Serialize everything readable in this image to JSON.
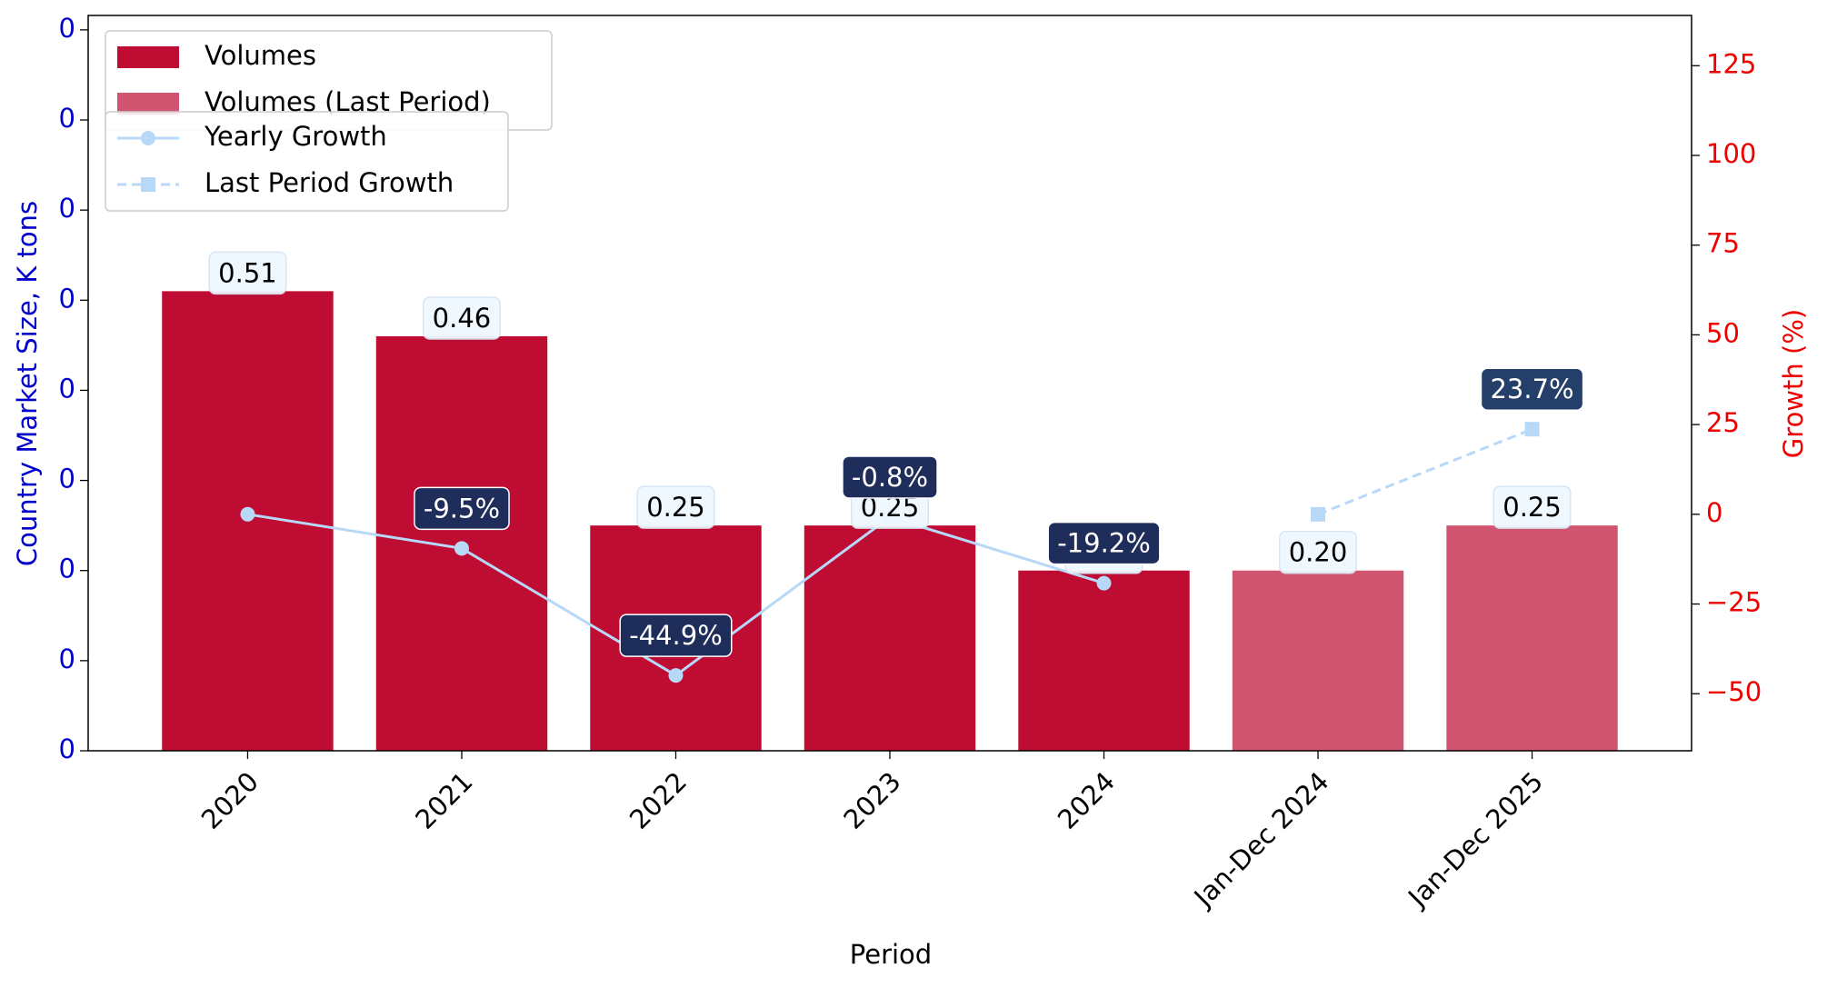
{
  "chart_data": {
    "type": "bar",
    "x_label": "Period",
    "y_label": "Country Market Size, K tons",
    "y2_label": "Growth (%)",
    "categories": [
      "2020",
      "2021",
      "2022",
      "2023",
      "2024",
      "Jan-Dec 2024",
      "Jan-Dec 2025"
    ],
    "series": [
      {
        "name": "Volumes",
        "color": "#be0c33",
        "type": "bar",
        "values": [
          0.51,
          0.46,
          0.25,
          0.25,
          0.2,
          null,
          null
        ],
        "value_labels": [
          "0.51",
          "0.46",
          "0.25",
          "0.25",
          "0.20",
          null,
          null
        ]
      },
      {
        "name": "Volumes (Last Period)",
        "color": "#d05570",
        "type": "bar",
        "values": [
          null,
          null,
          null,
          null,
          null,
          0.2,
          0.25
        ],
        "value_labels": [
          null,
          null,
          null,
          null,
          null,
          "0.20",
          "0.25"
        ]
      },
      {
        "name": "Yearly Growth",
        "color": "#b8d8f8",
        "type": "line",
        "axis": "y2",
        "marker": "circle",
        "dash": false,
        "label_color": "#1f2d5a",
        "values": [
          0,
          -9.5,
          -44.9,
          -0.8,
          -19.2,
          null,
          null
        ],
        "value_labels": [
          null,
          "-9.5%",
          "-44.9%",
          "-0.8%",
          "-19.2%",
          null,
          null
        ]
      },
      {
        "name": "Last Period Growth",
        "color": "#b8d8f8",
        "type": "line",
        "axis": "y2",
        "marker": "square",
        "dash": true,
        "label_color": "#253f6b",
        "values": [
          null,
          null,
          null,
          null,
          null,
          0,
          23.7
        ],
        "value_labels": [
          null,
          null,
          null,
          null,
          null,
          null,
          "23.7%"
        ]
      }
    ],
    "ylim": [
      0,
      0.816
    ],
    "yticks": [
      {
        "value": 0,
        "label": "0"
      },
      {
        "value": 0.1,
        "label": "0"
      },
      {
        "value": 0.2,
        "label": "0"
      },
      {
        "value": 0.3,
        "label": "0"
      },
      {
        "value": 0.4,
        "label": "0"
      },
      {
        "value": 0.5,
        "label": "0"
      },
      {
        "value": 0.6,
        "label": "0"
      },
      {
        "value": 0.7,
        "label": "0"
      },
      {
        "value": 0.8,
        "label": "0"
      }
    ],
    "y2lim": [
      -65.9,
      139
    ],
    "y2ticks": [
      {
        "value": -50,
        "label": "−50"
      },
      {
        "value": -25,
        "label": "−25"
      },
      0,
      25,
      50,
      75,
      100,
      125
    ],
    "y_tick_color": "#0000cc",
    "y2_tick_color": "#ee0000"
  }
}
